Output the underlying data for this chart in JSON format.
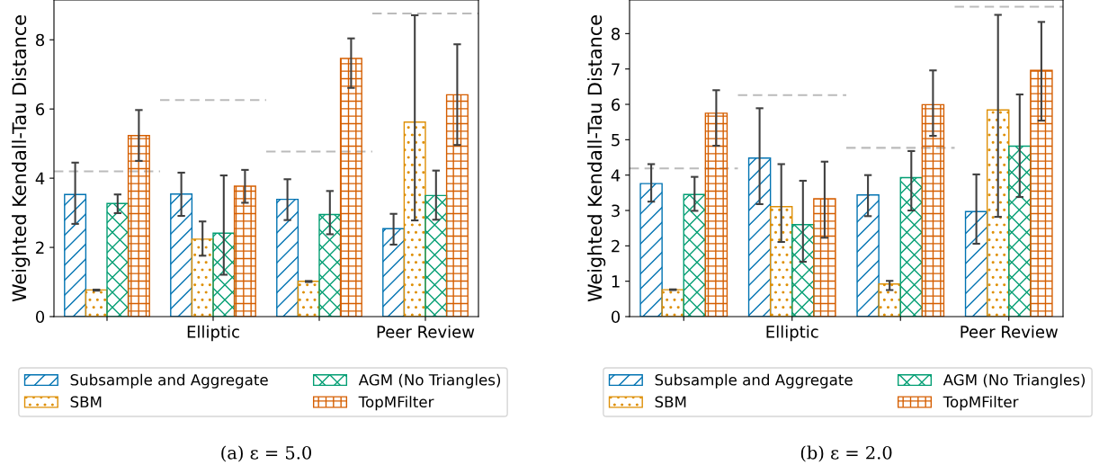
{
  "chart_data": [
    {
      "type": "bar",
      "categories": [
        null,
        "Elliptic",
        null,
        "Peer Review"
      ],
      "ylabel": "Weighted Kendall-Tau Distance",
      "ylim": [
        0,
        9.15
      ],
      "yticks": [
        0,
        2,
        4,
        6,
        8
      ],
      "grid": false,
      "legend": "bottom",
      "annotations": [
        "(a) ε = 5.0"
      ],
      "series": [
        {
          "name": "Subsample and Aggregate",
          "color": "#0173b2",
          "values": [
            3.53,
            3.54,
            3.39,
            2.54
          ],
          "errors": [
            [
              2.68,
              4.45
            ],
            [
              2.91,
              4.16
            ],
            [
              2.79,
              3.97
            ],
            [
              2.08,
              2.97
            ]
          ]
        },
        {
          "name": "SBM",
          "color": "#de8f05",
          "values": [
            0.77,
            2.24,
            1.02,
            5.62
          ],
          "errors": [
            [
              0.75,
              0.78
            ],
            [
              1.76,
              2.75
            ],
            [
              1.0,
              1.03
            ],
            [
              2.78,
              8.71
            ]
          ]
        },
        {
          "name": "AGM (No Triangles)",
          "color": "#029e73",
          "values": [
            3.27,
            2.41,
            2.95,
            3.5
          ],
          "errors": [
            [
              2.99,
              3.53
            ],
            [
              1.21,
              4.08
            ],
            [
              2.38,
              3.63
            ],
            [
              2.8,
              4.22
            ]
          ]
        },
        {
          "name": "TopMFilter",
          "color": "#d55e00",
          "values": [
            5.23,
            3.77,
            7.46,
            6.41
          ],
          "errors": [
            [
              4.5,
              5.97
            ],
            [
              3.29,
              4.24
            ],
            [
              6.61,
              8.04
            ],
            [
              4.96,
              7.87
            ]
          ]
        }
      ],
      "ref_lines": [
        {
          "axis": "y",
          "value": 4.2,
          "color": "#bbbbbb",
          "line_style": "dashed"
        },
        {
          "axis": "y",
          "value": 6.26,
          "color": "#bbbbbb",
          "line_style": "dashed"
        },
        {
          "axis": "y",
          "value": 4.77,
          "color": "#bbbbbb",
          "line_style": "dashed"
        },
        {
          "axis": "y",
          "value": 8.76,
          "color": "#bbbbbb",
          "line_style": "dashed"
        }
      ]
    },
    {
      "type": "bar",
      "categories": [
        null,
        "Elliptic",
        null,
        "Peer Review"
      ],
      "ylabel": "Weighted Kendall-Tau Distance",
      "ylim": [
        0,
        8.95
      ],
      "yticks": [
        0,
        1,
        2,
        3,
        4,
        5,
        6,
        7,
        8
      ],
      "grid": false,
      "legend": "bottom",
      "annotations": [
        "(b) ε = 2.0"
      ],
      "series": [
        {
          "name": "Subsample and Aggregate",
          "color": "#0173b2",
          "values": [
            3.76,
            4.48,
            3.44,
            2.97
          ],
          "errors": [
            [
              3.25,
              4.31
            ],
            [
              3.18,
              5.89
            ],
            [
              2.84,
              4.0
            ],
            [
              2.06,
              4.02
            ]
          ]
        },
        {
          "name": "SBM",
          "color": "#de8f05",
          "values": [
            0.76,
            3.11,
            0.92,
            5.84
          ],
          "errors": [
            [
              0.75,
              0.77
            ],
            [
              2.11,
              4.31
            ],
            [
              0.75,
              1.01
            ],
            [
              2.82,
              8.53
            ]
          ]
        },
        {
          "name": "AGM (No Triangles)",
          "color": "#029e73",
          "values": [
            3.45,
            2.6,
            3.93,
            4.82
          ],
          "errors": [
            [
              2.99,
              3.95
            ],
            [
              1.55,
              3.84
            ],
            [
              3.0,
              4.68
            ],
            [
              3.38,
              6.28
            ]
          ]
        },
        {
          "name": "TopMFilter",
          "color": "#d55e00",
          "values": [
            5.75,
            3.33,
            5.99,
            6.96
          ],
          "errors": [
            [
              4.83,
              6.4
            ],
            [
              2.23,
              4.38
            ],
            [
              5.11,
              6.96
            ],
            [
              5.54,
              8.33
            ]
          ]
        }
      ],
      "ref_lines": [
        {
          "axis": "y",
          "value": 4.19,
          "color": "#bbbbbb",
          "line_style": "dashed"
        },
        {
          "axis": "y",
          "value": 6.26,
          "color": "#bbbbbb",
          "line_style": "dashed"
        },
        {
          "axis": "y",
          "value": 4.77,
          "color": "#bbbbbb",
          "line_style": "dashed"
        },
        {
          "axis": "y",
          "value": 8.76,
          "color": "#bbbbbb",
          "line_style": "dashed"
        }
      ]
    }
  ]
}
